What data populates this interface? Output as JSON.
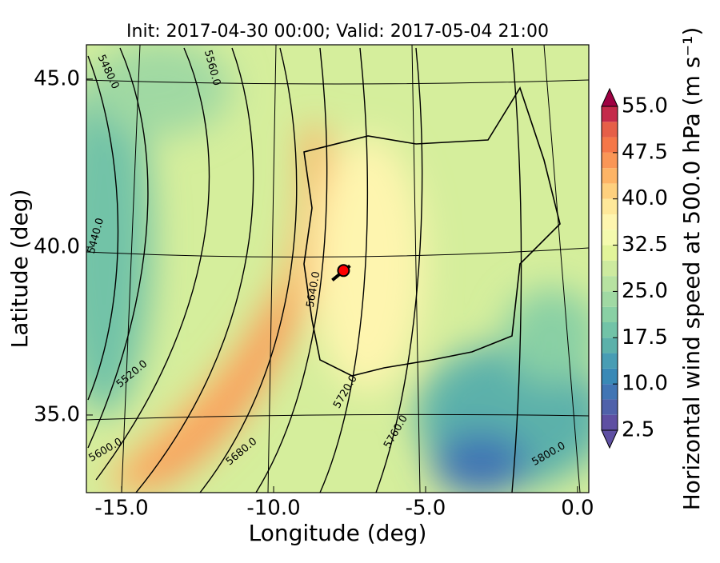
{
  "chart_data": {
    "type": "contour_map",
    "title": "Init: 2017-04-30 00:00; Valid: 2017-05-04 21:00",
    "x_label": "Longitude (deg)",
    "y_label": "Latitude (deg)",
    "xlim": [
      -16.16,
      0.37
    ],
    "ylim": [
      32.69,
      46.02
    ],
    "xticks": [
      {
        "value": -15,
        "label": "-15.0"
      },
      {
        "value": -10,
        "label": "-10.0"
      },
      {
        "value": -5,
        "label": "-5.0"
      },
      {
        "value": 0,
        "label": "0.0"
      }
    ],
    "yticks": [
      {
        "value": 35,
        "label": "35.0"
      },
      {
        "value": 40,
        "label": "40.0"
      },
      {
        "value": 45,
        "label": "45.0"
      }
    ],
    "marker": {
      "x": -7.7,
      "y": 39.3,
      "color": "#ff0000"
    },
    "contour_labels": [
      {
        "value": 5480,
        "label": "5480.0"
      },
      {
        "value": 5560,
        "label": "5560.0"
      },
      {
        "value": 5440,
        "label": "5440.0"
      },
      {
        "value": 5640,
        "label": "5640.0"
      },
      {
        "value": 5520,
        "label": "5520.0"
      },
      {
        "value": 5600,
        "label": "5600.0"
      },
      {
        "value": 5680,
        "label": "5680.0"
      },
      {
        "value": 5720,
        "label": "5720.0"
      },
      {
        "value": 5760,
        "label": "5760.0"
      },
      {
        "value": 5800,
        "label": "5800.0"
      }
    ],
    "colorbar": {
      "label": "Horizontal wind speed at 500.0 hPa (m s⁻¹)",
      "lim": [
        2.5,
        55
      ],
      "ticks": [
        2.5,
        {
          "value": 10,
          "label": "10.0"
        },
        17.5,
        {
          "value": 25,
          "label": "25.0"
        },
        32.5,
        {
          "value": 40,
          "label": "40.0"
        },
        47.5,
        {
          "value": 55,
          "label": "55.0"
        }
      ],
      "colors": [
        "#5e4fa2",
        "#4f61aa",
        "#4175b4",
        "#3989b6",
        "#489db4",
        "#5cb1aa",
        "#72c3a7",
        "#89d0a4",
        "#a0d9a3",
        "#b7e2a1",
        "#cdea9f",
        "#e2f49a",
        "#f4faae",
        "#fef5af",
        "#fee89a",
        "#fed07e",
        "#fdb466",
        "#fa9656",
        "#f57748",
        "#e65f48",
        "#c42a4a"
      ],
      "extend_colors": [
        "#5e4fa2",
        "#9e0142"
      ]
    }
  }
}
